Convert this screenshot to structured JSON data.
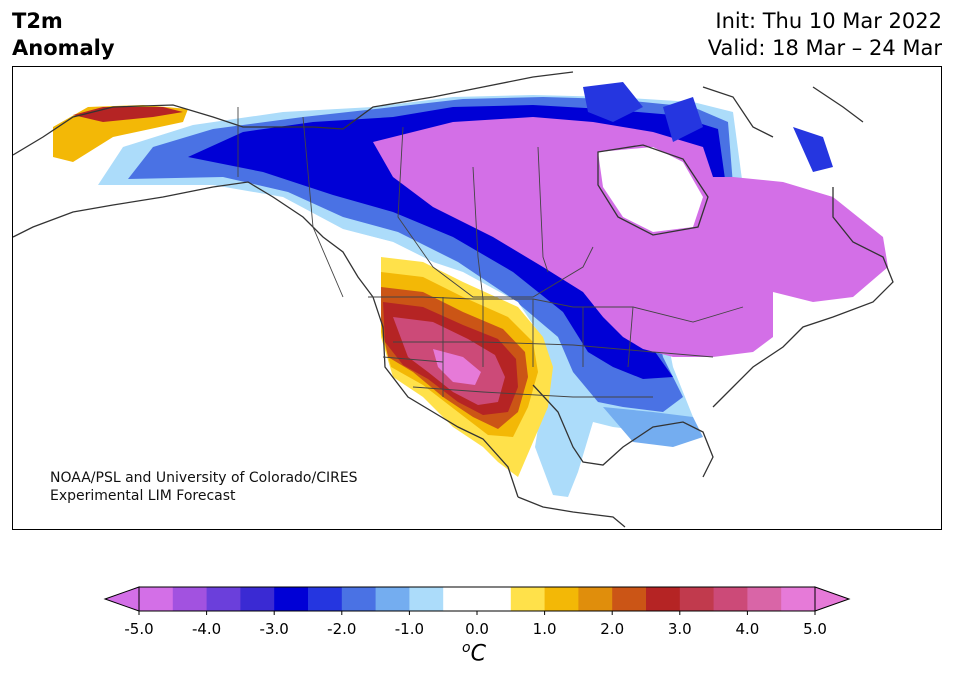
{
  "header": {
    "variable_line1": "T2m",
    "variable_line2": "Anomaly",
    "init": "Init: Thu 10 Mar 2022",
    "valid": "Valid: 18 Mar – 24 Mar"
  },
  "credit": {
    "line1": "NOAA/PSL and University of Colorado/CIRES",
    "line2": "Experimental LIM Forecast"
  },
  "colorbar": {
    "unit_base": "C",
    "unit_sup": "o",
    "ticks": [
      "-5.0",
      "-4.0",
      "-3.0",
      "-2.0",
      "-1.0",
      "0.0",
      "1.0",
      "2.0",
      "3.0",
      "4.0",
      "5.0"
    ],
    "range": [
      -5,
      5
    ],
    "extend": "both",
    "colors": [
      "#d36fe7",
      "#a252e0",
      "#6b3fdb",
      "#3a2ad3",
      "#0000d6",
      "#2536e0",
      "#4a72e4",
      "#74adf0",
      "#acdcfa",
      "#ffffff",
      "#ffffff",
      "#ffe14a",
      "#f3b806",
      "#e08e0c",
      "#cb5516",
      "#b52424",
      "#c13a4d",
      "#cc4a78",
      "#d965a7",
      "#e67ad8"
    ]
  }
}
